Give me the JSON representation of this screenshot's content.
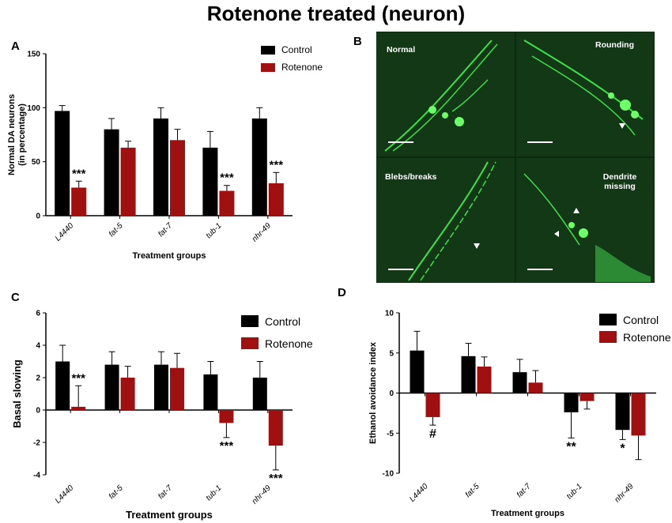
{
  "figure_title": "Rotenone treated (neuron)",
  "panels": {
    "a": {
      "label": "A"
    },
    "b": {
      "label": "B",
      "images": [
        {
          "caption": "Normal"
        },
        {
          "caption": "Rounding"
        },
        {
          "caption": "Blebs/breaks"
        },
        {
          "caption": "Dendrite missing"
        }
      ]
    },
    "c": {
      "label": "C"
    },
    "d": {
      "label": "D"
    }
  },
  "colors": {
    "control": "#000000",
    "rotenone": "#a01010",
    "fluorescence": "#3fe04a"
  },
  "chart_data": [
    {
      "id": "A",
      "type": "bar",
      "title": "",
      "xlabel": "Treatment groups",
      "ylabel": "Normal DA neurons (in percentage)",
      "ylim": [
        0,
        150
      ],
      "yticks": [
        "0",
        "50",
        "100",
        "150"
      ],
      "grid": false,
      "legend_position": "top-right",
      "categories": [
        "L4440",
        "fat-5",
        "fat-7",
        "tub-1",
        "nhr-49"
      ],
      "series": [
        {
          "name": "Control",
          "values": [
            97,
            80,
            90,
            63,
            90
          ],
          "errors": [
            5,
            10,
            10,
            15,
            10
          ]
        },
        {
          "name": "Rotenone",
          "values": [
            26,
            63,
            70,
            23,
            30
          ],
          "errors": [
            6,
            6,
            10,
            5,
            10
          ]
        }
      ],
      "annotations": [
        {
          "category": "L4440",
          "series": "Rotenone",
          "position": "above",
          "text": "***"
        },
        {
          "category": "tub-1",
          "series": "Rotenone",
          "position": "above",
          "text": "***"
        },
        {
          "category": "nhr-49",
          "series": "Rotenone",
          "position": "above",
          "text": "***"
        }
      ]
    },
    {
      "id": "C",
      "type": "bar",
      "title": "",
      "xlabel": "Treatment groups",
      "ylabel": "Basal slowing",
      "ylim": [
        -4,
        6
      ],
      "yticks": [
        "-4",
        "-2",
        "0",
        "2",
        "4",
        "6"
      ],
      "grid": false,
      "legend_position": "top-right",
      "categories": [
        "L4440",
        "fat-5",
        "fat-7",
        "tub-1",
        "nhr-49"
      ],
      "series": [
        {
          "name": "Control",
          "values": [
            3.0,
            2.8,
            2.8,
            2.2,
            2.0
          ],
          "errors": [
            1.0,
            0.8,
            0.8,
            0.8,
            1.0
          ]
        },
        {
          "name": "Rotenone",
          "values": [
            0.2,
            2.0,
            2.6,
            -0.8,
            -2.2
          ],
          "errors": [
            1.3,
            0.7,
            0.9,
            0.9,
            1.5
          ]
        }
      ],
      "annotations": [
        {
          "category": "L4440",
          "series": "Rotenone",
          "position": "above",
          "text": "***"
        },
        {
          "category": "tub-1",
          "series": "Rotenone",
          "position": "below",
          "text": "***"
        },
        {
          "category": "nhr-49",
          "series": "Rotenone",
          "position": "below",
          "text": "***"
        }
      ]
    },
    {
      "id": "D",
      "type": "bar",
      "title": "",
      "xlabel": "Treatment groups",
      "ylabel": "Ethanol avoidance index",
      "ylim": [
        -10,
        10
      ],
      "yticks": [
        "-10",
        "-5",
        "0",
        "5",
        "10"
      ],
      "grid": false,
      "legend_position": "top-right",
      "categories": [
        "L4440",
        "fat-5",
        "fat-7",
        "tub-1",
        "nhr-49"
      ],
      "series": [
        {
          "name": "Control",
          "values": [
            5.3,
            4.6,
            2.6,
            -2.4,
            -4.6
          ],
          "errors": [
            2.4,
            1.6,
            1.6,
            3.2,
            1.2
          ]
        },
        {
          "name": "Rotenone",
          "values": [
            -3.0,
            3.3,
            1.3,
            -1.0,
            -5.3
          ],
          "errors": [
            1.0,
            1.2,
            1.5,
            1.0,
            3.0
          ]
        }
      ],
      "annotations": [
        {
          "category": "L4440",
          "series": "Rotenone",
          "position": "below",
          "text": "#"
        },
        {
          "category": "tub-1",
          "series": "Control",
          "position": "below",
          "text": "**"
        },
        {
          "category": "nhr-49",
          "series": "Control",
          "position": "below",
          "text": "*"
        }
      ]
    }
  ]
}
